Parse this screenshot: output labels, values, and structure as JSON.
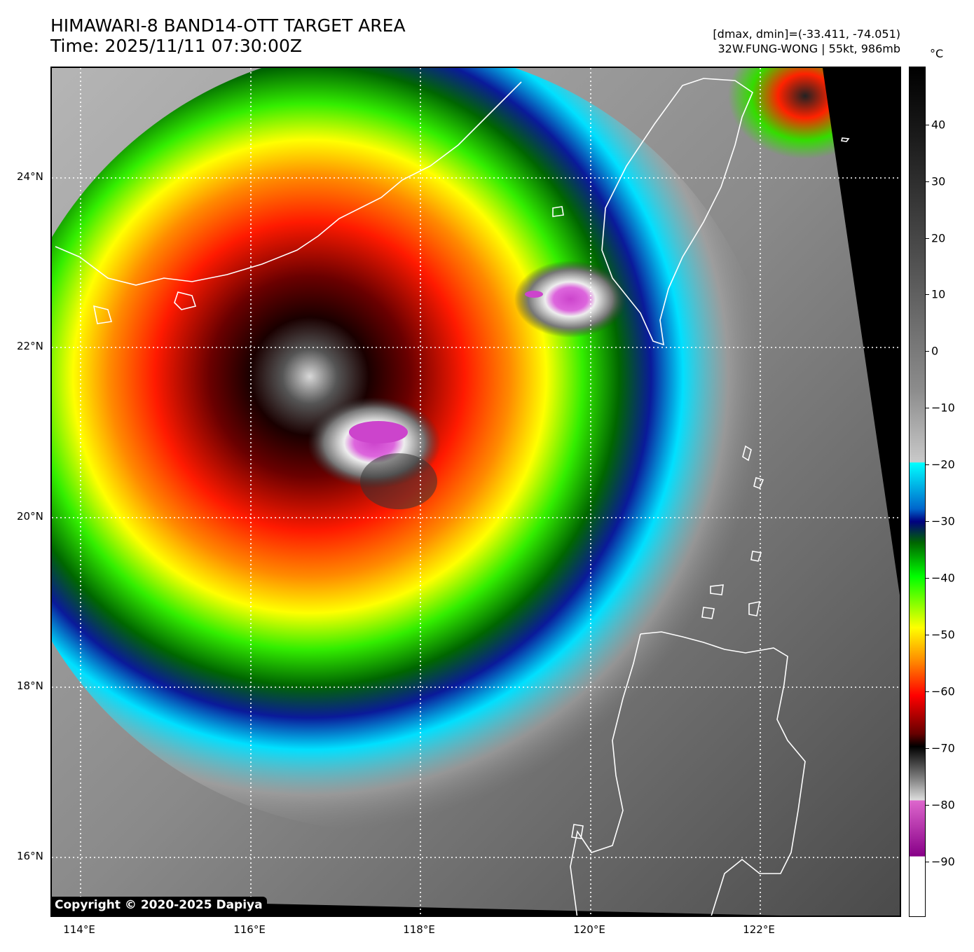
{
  "header": {
    "title_line1": "HIMAWARI-8 BAND14-OTT TARGET AREA",
    "title_line2": "Time: 2025/11/11 07:30:00Z",
    "range_text": "[dmax, dmin]=(-33.411, -74.051)",
    "storm_text": "32W.FUNG-WONG | 55kt, 986mb"
  },
  "map": {
    "lat_labels": [
      "24°N",
      "22°N",
      "20°N",
      "18°N",
      "16°N"
    ],
    "lon_labels": [
      "114°E",
      "116°E",
      "118°E",
      "120°E",
      "122°E"
    ],
    "copyright": "Copyright © 2020-2025 Dapiya"
  },
  "colorbar": {
    "unit": "°C",
    "ticks": [
      "40",
      "30",
      "20",
      "10",
      "0",
      "−10",
      "−20",
      "−30",
      "−40",
      "−50",
      "−60",
      "−70",
      "−80",
      "−90"
    ]
  }
}
